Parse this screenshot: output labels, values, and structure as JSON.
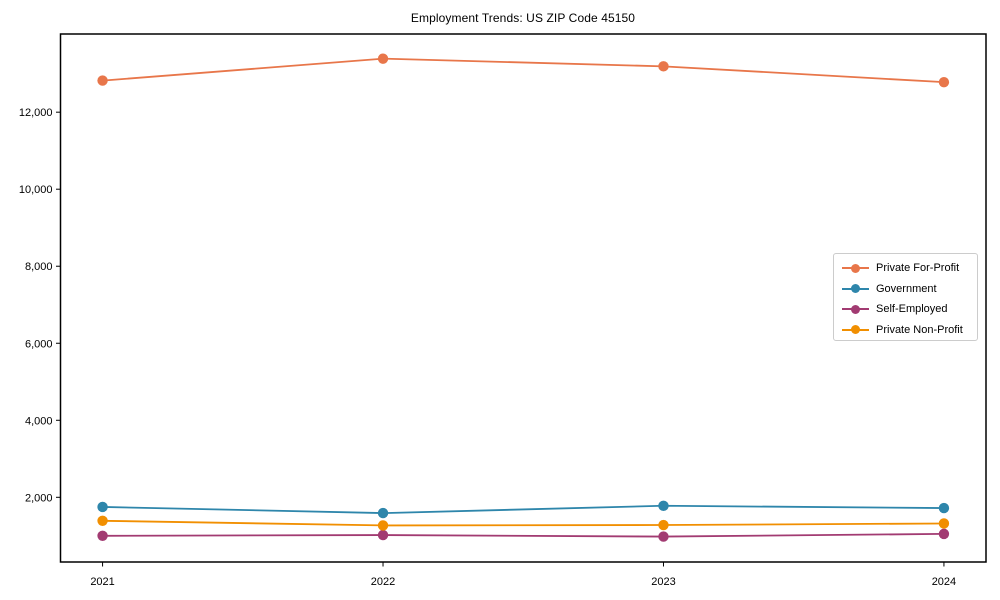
{
  "figure": {
    "background": "#ffffff",
    "axis_color": "#000000",
    "legend_border_color": "#cccccc"
  },
  "chart_data": {
    "type": "line",
    "title": "Employment Trends: US ZIP Code 45150",
    "xlabel": "",
    "ylabel": "",
    "x_values": [
      2021,
      2022,
      2023,
      2024
    ],
    "x_tick_labels": [
      "2021",
      "2022",
      "2023",
      "2024"
    ],
    "y_tick_values": [
      2000,
      4000,
      6000,
      8000,
      10000,
      12000
    ],
    "y_tick_labels": [
      "2,000",
      "4,000",
      "6,000",
      "8,000",
      "10,000",
      "12,000"
    ],
    "xlim": [
      2020.85,
      2024.15
    ],
    "ylim": [
      320,
      14030
    ],
    "grid": false,
    "frame": "box",
    "legend_position": "center-right",
    "series": [
      {
        "name": "Private For-Profit",
        "color": "#e8764a",
        "values": [
          12820,
          13390,
          13190,
          12780
        ]
      },
      {
        "name": "Government",
        "color": "#2e86ab",
        "values": [
          1750,
          1590,
          1780,
          1720
        ]
      },
      {
        "name": "Self-Employed",
        "color": "#a23b72",
        "values": [
          1000,
          1020,
          980,
          1050
        ]
      },
      {
        "name": "Private Non-Profit",
        "color": "#f18f01",
        "values": [
          1390,
          1270,
          1280,
          1320
        ]
      }
    ]
  }
}
